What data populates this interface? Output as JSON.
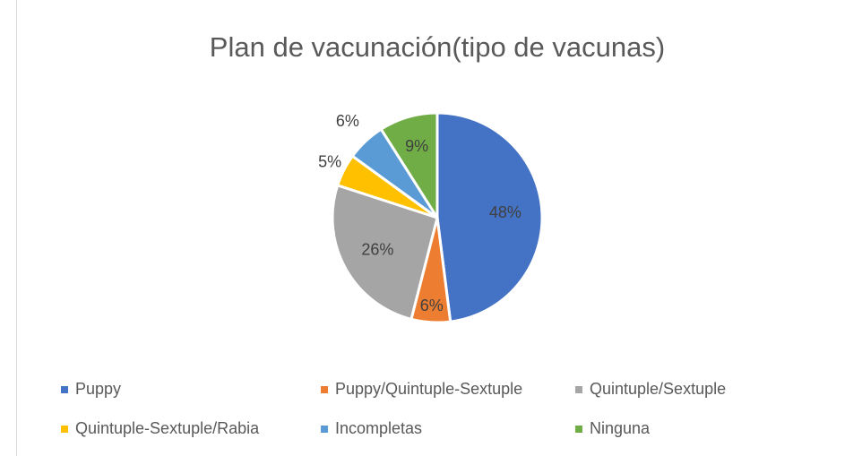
{
  "chart_data": {
    "type": "pie",
    "title": "Plan de vacunación(tipo de vacunas)",
    "categories": [
      "Puppy",
      "Puppy/Quintuple-Sextuple",
      "Quintuple/Sextuple",
      "Quintuple-Sextuple/Rabia",
      "Incompletas",
      "Ninguna"
    ],
    "values": [
      48,
      6,
      26,
      5,
      6,
      9
    ],
    "value_labels": [
      "48%",
      "6%",
      "26%",
      "5%",
      "6%",
      "9%"
    ],
    "colors": [
      "#4472c4",
      "#ed7d31",
      "#a5a5a5",
      "#ffc000",
      "#5b9bd5",
      "#70ad47"
    ],
    "legend": "bottom"
  }
}
